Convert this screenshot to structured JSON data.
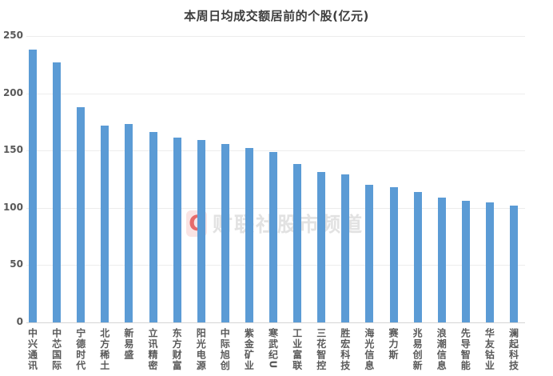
{
  "chart_data": {
    "type": "bar",
    "title": "本周日均成交额居前的个股(亿元)",
    "categories": [
      "中兴通讯",
      "中芯国际",
      "宁德时代",
      "北方稀土",
      "新易盛",
      "立讯精密",
      "东方财富",
      "阳光电源",
      "中际旭创",
      "紫金矿业",
      "寒武纪U",
      "工业富联",
      "三花智控",
      "胜宏科技",
      "海光信息",
      "赛力斯",
      "兆易创新",
      "浪潮信息",
      "先导智能",
      "华友钴业",
      "澜起科技"
    ],
    "values": [
      238,
      227,
      188,
      172,
      173,
      166,
      161,
      159,
      156,
      152,
      149,
      138,
      131,
      129,
      120,
      118,
      114,
      109,
      106,
      105,
      102
    ],
    "xlabel": "",
    "ylabel": "",
    "ylim": [
      0,
      250
    ],
    "yticks": [
      0,
      50,
      100,
      150,
      200,
      250
    ],
    "grid": true,
    "legend_position": "none",
    "bar_color": "#5b9bd5"
  },
  "watermark": {
    "logo_letter": "C",
    "text": "财联社股市频道"
  },
  "colors": {
    "bar": "#5b9bd5",
    "title": "#3d3d3d",
    "tick_label": "#595959",
    "gridline": "#ececec",
    "axis_line": "#d6d6d6",
    "watermark_text": "#e2e2e2",
    "watermark_red": "#de3c3c"
  }
}
